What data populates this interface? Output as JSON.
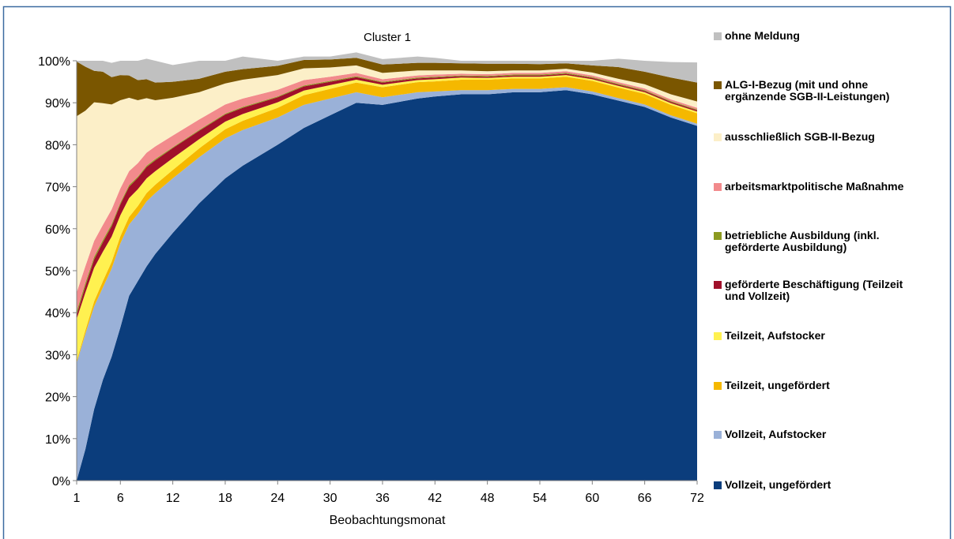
{
  "chart_data": {
    "type": "area",
    "title": "Cluster 1",
    "xlabel": "Beobachtungsmonat",
    "ylabel": "",
    "ylim": [
      0,
      100
    ],
    "xlim": [
      1,
      72
    ],
    "x_ticks": [
      "1",
      "6",
      "12",
      "18",
      "24",
      "30",
      "36",
      "42",
      "48",
      "54",
      "60",
      "66",
      "72"
    ],
    "y_ticks": [
      "0%",
      "10%",
      "20%",
      "30%",
      "40%",
      "50%",
      "60%",
      "70%",
      "80%",
      "90%",
      "100%"
    ],
    "grid": false,
    "legend_position": "right",
    "x": [
      1,
      2,
      3,
      4,
      5,
      6,
      7,
      8,
      9,
      10,
      12,
      15,
      18,
      20,
      24,
      27,
      30,
      33,
      36,
      40,
      42,
      45,
      48,
      51,
      54,
      57,
      60,
      63,
      66,
      69,
      72
    ],
    "series": [
      {
        "name": "Vollzeit, ungefördert",
        "color": "#0b3d7c",
        "values": [
          0,
          7.5,
          17,
          24,
          29.5,
          36.5,
          44,
          47.5,
          51,
          54,
          59,
          66,
          72,
          75,
          80,
          84,
          87,
          90,
          89.5,
          91,
          91.5,
          92,
          92,
          92.5,
          92.5,
          93,
          92,
          90.5,
          89,
          86.5,
          84.5
        ]
      },
      {
        "name": "Vollzeit, Aufstocker",
        "color": "#9ab1d8",
        "values": [
          28,
          27.5,
          24.5,
          22,
          21,
          20,
          17,
          16,
          15.5,
          14.5,
          13,
          11,
          9.5,
          8.5,
          6.5,
          5.5,
          4,
          2.5,
          1.8,
          1.5,
          1.2,
          1,
          1,
          0.8,
          0.8,
          0.7,
          0.7,
          0.6,
          0.6,
          0.5,
          0.5
        ]
      },
      {
        "name": "Teilzeit, ungefördert",
        "color": "#f5b800",
        "values": [
          0.5,
          0.8,
          1.2,
          1.5,
          1.6,
          1.7,
          1.8,
          1.9,
          2,
          2,
          2,
          2.1,
          2.2,
          2.2,
          2.3,
          2.3,
          2.3,
          2.3,
          2.4,
          2.4,
          2.4,
          2.5,
          2.5,
          2.5,
          2.5,
          2.5,
          2.5,
          2.5,
          2.5,
          2.5,
          2.5
        ]
      },
      {
        "name": "Teilzeit, Aufstocker",
        "color": "#fff150",
        "values": [
          10,
          9,
          8,
          7,
          6,
          5,
          4.5,
          4,
          3.5,
          3.2,
          2.8,
          2.2,
          1.8,
          1.6,
          1.3,
          1.1,
          0.9,
          0.7,
          0.6,
          0.5,
          0.5,
          0.5,
          0.4,
          0.4,
          0.4,
          0.4,
          0.4,
          0.4,
          0.4,
          0.4,
          0.4
        ]
      },
      {
        "name": "geförderte Beschäftigung (Teilzeit und Vollzeit)",
        "color": "#a0102a",
        "values": [
          1,
          1.6,
          2,
          2.3,
          2.5,
          2.6,
          2.7,
          2.7,
          2.7,
          2.6,
          2.4,
          2,
          1.7,
          1.5,
          1.2,
          1,
          0.8,
          0.6,
          0.5,
          0.4,
          0.4,
          0.3,
          0.3,
          0.3,
          0.3,
          0.3,
          0.3,
          0.3,
          0.3,
          0.3,
          0.3
        ]
      },
      {
        "name": "betriebliche Ausbildung (inkl. geförderte Ausbildung)",
        "color": "#8c9a20",
        "values": [
          0.8,
          0.7,
          0.6,
          0.5,
          0.5,
          0.4,
          0.4,
          0.3,
          0.3,
          0.3,
          0.2,
          0.2,
          0.2,
          0.2,
          0.2,
          0.2,
          0.2,
          0.2,
          0.2,
          0.2,
          0.2,
          0.2,
          0.2,
          0.2,
          0.2,
          0.2,
          0.2,
          0.2,
          0.2,
          0.2,
          0.2
        ]
      },
      {
        "name": "arbeitsmarktpolitische Maßnahme",
        "color": "#f28a8c",
        "values": [
          4.5,
          4,
          3.8,
          3.6,
          3.5,
          3.4,
          3.3,
          3.2,
          3.1,
          3,
          2.8,
          2.5,
          2.2,
          2,
          1.6,
          1.3,
          1,
          0.8,
          0.6,
          0.5,
          0.5,
          0.4,
          0.4,
          0.4,
          0.4,
          0.4,
          0.4,
          0.4,
          0.4,
          0.4,
          0.4
        ]
      },
      {
        "name": "ausschließlich SGB-II-Bezug",
        "color": "#fcefc8",
        "values": [
          42,
          37,
          33,
          29,
          25,
          21,
          17.5,
          15,
          13,
          11,
          9,
          6.5,
          5,
          4.5,
          3.5,
          2.8,
          2.2,
          1.8,
          1.5,
          1.2,
          1,
          0.8,
          0.7,
          0.6,
          0.6,
          0.6,
          0.7,
          0.8,
          1,
          1.2,
          1.5
        ]
      },
      {
        "name": "ALG-I-Bezug (mit und ohne ergänzende SGB-II-Leistungen)",
        "color": "#7a5600",
        "values": [
          13,
          10.5,
          7.5,
          7.5,
          6.5,
          6,
          5.3,
          4.8,
          4.5,
          4.2,
          3.8,
          3.2,
          2.8,
          2.5,
          2.2,
          2,
          1.9,
          1.8,
          2,
          1.8,
          1.8,
          1.7,
          1.8,
          1.6,
          1.5,
          1.3,
          1.7,
          2.8,
          3,
          4,
          4.5
        ]
      },
      {
        "name": "ohne Meldung",
        "color": "#c0c0c0",
        "values": [
          0.2,
          1.4,
          2.4,
          2.6,
          3.4,
          3.4,
          3.5,
          4.6,
          4.9,
          5.2,
          4,
          4.3,
          2.6,
          3,
          1.2,
          0.8,
          0.7,
          1.3,
          1.3,
          1.5,
          1.2,
          0.6,
          0.7,
          0.7,
          0.8,
          0.6,
          1.1,
          2,
          2.6,
          3.7,
          4.8
        ]
      }
    ]
  }
}
